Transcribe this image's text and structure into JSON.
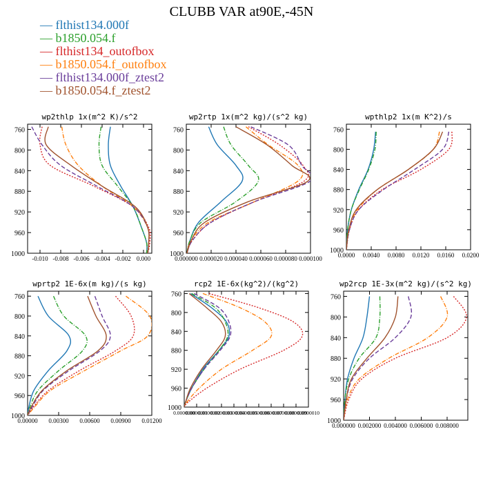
{
  "title": "CLUBB VAR at90E,-45N",
  "legend": [
    {
      "label": "flthist134.000f",
      "color": "#1f77b4",
      "dash": ""
    },
    {
      "label": "b1850.054.f",
      "color": "#2ca02c",
      "dash": "6,2,1,2"
    },
    {
      "label": "flthist134_outofbox",
      "color": "#d62728",
      "dash": "2,2"
    },
    {
      "label": "b1850.054.f_outofbox",
      "color": "#ff7f0e",
      "dash": "6,2,1,2"
    },
    {
      "label": "flthist134.000f_ztest2",
      "color": "#6a3d9a",
      "dash": "6,3"
    },
    {
      "label": "b1850.054.f_ztest2",
      "color": "#a0522d",
      "dash": ""
    }
  ],
  "chart_data": [
    {
      "type": "line",
      "title": "wp2thlp  1x(m^2 K)/s^2",
      "ylim": [
        1000,
        750
      ],
      "yticks": [
        760,
        800,
        840,
        880,
        920,
        960,
        1000
      ],
      "xlim": [
        -0.0112,
        0.0008
      ],
      "xticks": [
        -0.01,
        -0.008,
        -0.006,
        -0.004,
        -0.002,
        0.0
      ],
      "xticklabels": [
        "-0.010",
        "-0.008",
        "-0.006",
        "-0.004",
        "-0.002",
        "0.000"
      ],
      "y": [
        755,
        790,
        830,
        870,
        910,
        950,
        980,
        1000
      ],
      "series": [
        {
          "values": [
            -0.0032,
            -0.0034,
            -0.0032,
            -0.0022,
            -0.001,
            -0.0002,
            0.0003,
            0.0003
          ]
        },
        {
          "values": [
            -0.0041,
            -0.0043,
            -0.004,
            -0.0025,
            -0.001,
            -0.0002,
            0.0003,
            0.0003
          ]
        },
        {
          "values": [
            -0.0098,
            -0.01,
            -0.009,
            -0.0048,
            -0.001,
            0.0005,
            0.0006,
            0.0004
          ]
        },
        {
          "values": [
            -0.0079,
            -0.0075,
            -0.0063,
            -0.004,
            -0.001,
            0.0004,
            0.0005,
            0.0004
          ]
        },
        {
          "values": [
            -0.0108,
            -0.0098,
            -0.008,
            -0.0045,
            -0.001,
            0.0004,
            0.0005,
            0.0004
          ]
        },
        {
          "values": [
            -0.0092,
            -0.0094,
            -0.007,
            -0.004,
            -0.0008,
            0.0004,
            0.0005,
            0.0004
          ]
        }
      ]
    },
    {
      "type": "line",
      "title": "wp2rtp  1x(m^2 kg)/(s^2 kg)",
      "ylim": [
        1000,
        750
      ],
      "yticks": [
        760,
        800,
        840,
        880,
        920,
        960,
        1000
      ],
      "xlim": [
        0,
        0.0001
      ],
      "xticks": [
        0,
        2e-05,
        4e-05,
        6e-05,
        8e-05,
        0.0001
      ],
      "xticklabels": [
        "0.000000",
        "0.000020",
        "0.000040",
        "0.000060",
        "0.000080",
        "0.000100"
      ],
      "y": [
        755,
        790,
        830,
        860,
        900,
        940,
        975,
        1000
      ],
      "series": [
        {
          "values": [
            1.8e-05,
            2.5e-05,
            4e-05,
            4.5e-05,
            2.8e-05,
            1e-05,
            3e-06,
            5e-07
          ]
        },
        {
          "values": [
            3e-05,
            3.6e-05,
            5e-05,
            5.8e-05,
            4e-05,
            1.2e-05,
            3e-06,
            5e-07
          ]
        },
        {
          "values": [
            5e-05,
            7.5e-05,
            9.4e-05,
            9.5e-05,
            5.5e-05,
            2e-05,
            5e-06,
            5e-07
          ]
        },
        {
          "values": [
            4.8e-05,
            6.6e-05,
            9e-05,
            9e-05,
            5.5e-05,
            1.8e-05,
            4e-06,
            5e-07
          ]
        },
        {
          "values": [
            5.2e-05,
            8.2e-05,
            9.3e-05,
            0.0001,
            5.5e-05,
            2e-05,
            5e-06,
            5e-07
          ]
        },
        {
          "values": [
            4e-05,
            6.5e-05,
            8.5e-05,
            9.8e-05,
            5e-05,
            1.5e-05,
            4e-06,
            5e-07
          ]
        }
      ]
    },
    {
      "type": "line",
      "title": "wpthlp2  1x(m K^2)/s",
      "ylim": [
        1000,
        750
      ],
      "yticks": [
        760,
        800,
        840,
        880,
        920,
        960,
        1000
      ],
      "xlim": [
        0,
        0.02
      ],
      "xticks": [
        0,
        0.004,
        0.008,
        0.012,
        0.016,
        0.02
      ],
      "xticklabels": [
        "0.0000",
        "0.0040",
        "0.0080",
        "0.0120",
        "0.0160",
        "0.0200"
      ],
      "y": [
        765,
        800,
        840,
        880,
        920,
        960,
        1000
      ],
      "series": [
        {
          "values": [
            0.0047,
            0.0044,
            0.0035,
            0.002,
            0.0008,
            0.0002,
            0.0
          ]
        },
        {
          "values": [
            0.0048,
            0.0046,
            0.0036,
            0.0021,
            0.0008,
            0.0002,
            0.0
          ]
        },
        {
          "values": [
            0.017,
            0.0165,
            0.012,
            0.0058,
            0.002,
            0.0005,
            0.0
          ]
        },
        {
          "values": [
            0.015,
            0.014,
            0.01,
            0.005,
            0.0018,
            0.0004,
            0.0
          ]
        },
        {
          "values": [
            0.0165,
            0.0155,
            0.011,
            0.006,
            0.002,
            0.0005,
            0.0
          ]
        },
        {
          "values": [
            0.0155,
            0.014,
            0.01,
            0.005,
            0.0016,
            0.0004,
            0.0
          ]
        }
      ]
    },
    {
      "type": "line",
      "title": "wprtp2  1E-6x(m kg)/(s kg)",
      "ylim": [
        1000,
        750
      ],
      "yticks": [
        760,
        800,
        840,
        880,
        920,
        960,
        1000
      ],
      "xlim": [
        0,
        0.012
      ],
      "xticks": [
        0,
        0.003,
        0.006,
        0.009,
        0.012
      ],
      "xticklabels": [
        "0.00000",
        "0.00300",
        "0.00600",
        "0.00900",
        "0.01200"
      ],
      "y": [
        760,
        800,
        840,
        870,
        910,
        950,
        985,
        1000
      ],
      "series": [
        {
          "values": [
            0.001,
            0.002,
            0.004,
            0.0038,
            0.002,
            0.0006,
            0.0001,
            0.0
          ]
        },
        {
          "values": [
            0.0025,
            0.0035,
            0.0056,
            0.0053,
            0.003,
            0.001,
            0.0002,
            0.0
          ]
        },
        {
          "values": [
            0.0085,
            0.01,
            0.0102,
            0.0085,
            0.005,
            0.002,
            0.0005,
            0.0
          ]
        },
        {
          "values": [
            0.0095,
            0.0118,
            0.0116,
            0.009,
            0.0055,
            0.0022,
            0.0006,
            0.0
          ]
        },
        {
          "values": [
            0.0065,
            0.0072,
            0.008,
            0.007,
            0.004,
            0.0015,
            0.0004,
            0.0
          ]
        },
        {
          "values": [
            0.0058,
            0.0066,
            0.0076,
            0.0068,
            0.0038,
            0.0014,
            0.0003,
            0.0
          ]
        }
      ]
    },
    {
      "type": "line",
      "title": "rcp2  1E-6x(kg^2)/(kg^2)",
      "ylim": [
        1000,
        755
      ],
      "yticks": [
        760,
        800,
        840,
        880,
        920,
        960,
        1000
      ],
      "xlim": [
        0,
        1e-06
      ],
      "xticks": [
        0,
        1e-07,
        2e-07,
        3e-07,
        4e-07,
        5e-07,
        6e-07,
        7e-07,
        8e-07,
        9e-07,
        1e-06
      ],
      "xticklabels": [
        "0.0000000",
        "0.0000001",
        "0.0000002",
        "0.0000003",
        "0.0000004",
        "0.0000005",
        "0.0000006",
        "0.0000007",
        "0.0000008",
        "0.0000009",
        "0.0000010"
      ],
      "y": [
        760,
        790,
        820,
        850,
        880,
        920,
        960,
        990,
        1000
      ],
      "series": [
        {
          "values": [
            5e-08,
            2.2e-07,
            3.4e-07,
            3.6e-07,
            2.8e-07,
            1.5e-07,
            6e-08,
            1e-08,
            0.0
          ]
        },
        {
          "values": [
            6e-08,
            2.5e-07,
            3.3e-07,
            3.5e-07,
            2.8e-07,
            1.6e-07,
            6e-08,
            1e-08,
            0.0
          ]
        },
        {
          "values": [
            2e-07,
            6e-07,
            8.8e-07,
            9.5e-07,
            8e-07,
            4.5e-07,
            1.8e-07,
            3e-08,
            0.0
          ]
        },
        {
          "values": [
            1.5e-07,
            4.5e-07,
            6.5e-07,
            7e-07,
            5.5e-07,
            3e-07,
            1.2e-07,
            2e-08,
            0.0
          ]
        },
        {
          "values": [
            8e-08,
            2.8e-07,
            3.6e-07,
            3.7e-07,
            2.9e-07,
            1.6e-07,
            6e-08,
            1e-08,
            0.0
          ]
        },
        {
          "values": [
            4e-08,
            1.8e-07,
            3e-07,
            3.3e-07,
            2.6e-07,
            1.4e-07,
            5e-08,
            1e-08,
            0.0
          ]
        }
      ]
    },
    {
      "type": "line",
      "title": "wp2rcp  1E-3x(m^2 kg)/(s^2 kg)",
      "ylim": [
        1000,
        750
      ],
      "yticks": [
        760,
        800,
        840,
        880,
        920,
        960,
        1000
      ],
      "xlim": [
        0,
        0.0096
      ],
      "xticks": [
        0,
        0.002,
        0.004,
        0.006,
        0.008
      ],
      "xticklabels": [
        "0.000000",
        "0.002000",
        "0.004000",
        "0.006000",
        "0.008000"
      ],
      "y": [
        760,
        800,
        840,
        880,
        920,
        960,
        1000
      ],
      "series": [
        {
          "values": [
            0.002,
            0.0018,
            0.0015,
            0.0008,
            0.0003,
            0.0001,
            0.0
          ]
        },
        {
          "values": [
            0.0028,
            0.0028,
            0.0025,
            0.0012,
            0.0004,
            0.0001,
            0.0
          ]
        },
        {
          "values": [
            0.0085,
            0.0095,
            0.008,
            0.004,
            0.0014,
            0.0004,
            0.0
          ]
        },
        {
          "values": [
            0.0075,
            0.008,
            0.0065,
            0.0035,
            0.0012,
            0.0003,
            0.0
          ]
        },
        {
          "values": [
            0.005,
            0.0052,
            0.004,
            0.002,
            0.0007,
            0.0002,
            0.0
          ]
        },
        {
          "values": [
            0.0042,
            0.004,
            0.0032,
            0.0018,
            0.0006,
            0.0002,
            0.0
          ]
        }
      ]
    }
  ]
}
